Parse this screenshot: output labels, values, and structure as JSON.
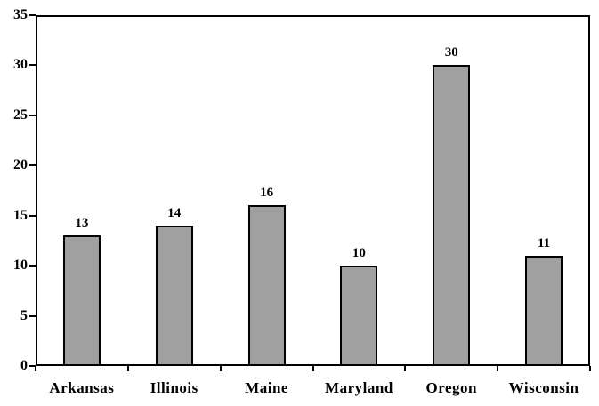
{
  "chart_data": {
    "type": "bar",
    "categories": [
      "Arkansas",
      "Illinois",
      "Maine",
      "Maryland",
      "Oregon",
      "Wisconsin"
    ],
    "values": [
      13,
      14,
      16,
      10,
      30,
      11
    ],
    "data_labels": [
      "13",
      "14",
      "16",
      "10",
      "30",
      "11"
    ],
    "title": "",
    "xlabel": "",
    "ylabel": "",
    "ylim": [
      0,
      35
    ],
    "yticks": [
      0,
      5,
      10,
      15,
      20,
      25,
      30,
      35
    ],
    "grid": false,
    "legend": "none",
    "colors": {
      "bar_fill": "#A0A0A0",
      "bar_border": "#000000",
      "axis": "#000000",
      "text": "#000000",
      "background": "#ffffff"
    }
  }
}
